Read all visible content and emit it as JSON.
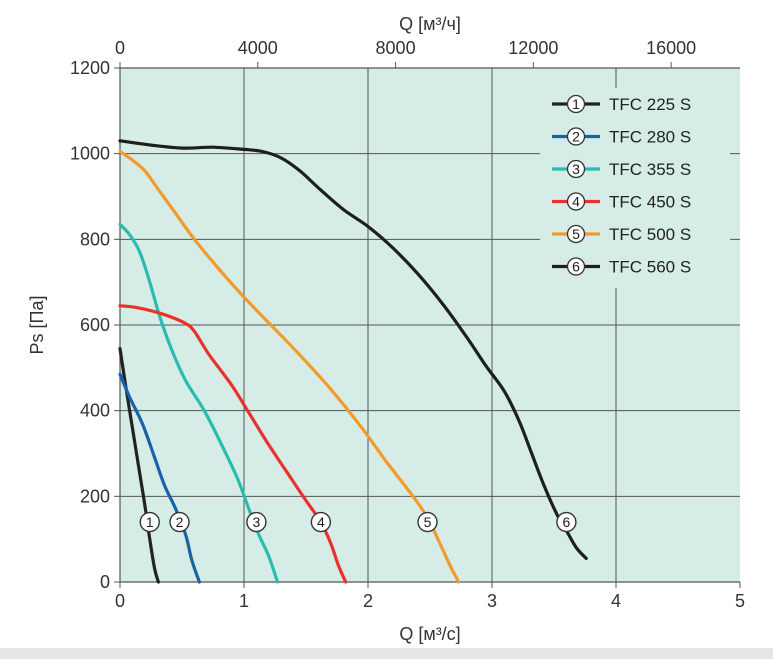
{
  "chart_data": {
    "type": "line",
    "xlabel_bottom": "Q [м³/с]",
    "xlabel_top": "Q [м³/ч]",
    "ylabel": "Ps [Па]",
    "xlim": [
      0,
      5
    ],
    "ylim": [
      0,
      1200
    ],
    "x2lim": [
      0,
      18000
    ],
    "xticks": [
      "0",
      "1",
      "2",
      "3",
      "4",
      "5"
    ],
    "x2ticks": [
      "0",
      "4000",
      "8000",
      "12000",
      "16000"
    ],
    "x2tick_values": [
      0,
      4000,
      8000,
      12000,
      16000
    ],
    "yticks": [
      "0",
      "200",
      "400",
      "600",
      "800",
      "1000",
      "1200"
    ],
    "grid": true,
    "legend_position": "top-right",
    "plot_background": "#d6ece6",
    "series": [
      {
        "id": "1",
        "name": "TFC 225 S",
        "color": "#222222",
        "points": [
          [
            0.0,
            545
          ],
          [
            0.05,
            450
          ],
          [
            0.1,
            360
          ],
          [
            0.15,
            270
          ],
          [
            0.2,
            180
          ],
          [
            0.24,
            100
          ],
          [
            0.28,
            30
          ],
          [
            0.31,
            0
          ]
        ],
        "marker": [
          0.24,
          140
        ]
      },
      {
        "id": "2",
        "name": "TFC 280 S",
        "color": "#1a62a6",
        "points": [
          [
            0.0,
            485
          ],
          [
            0.08,
            430
          ],
          [
            0.18,
            370
          ],
          [
            0.28,
            290
          ],
          [
            0.36,
            225
          ],
          [
            0.45,
            170
          ],
          [
            0.53,
            110
          ],
          [
            0.58,
            50
          ],
          [
            0.64,
            0
          ]
        ],
        "marker": [
          0.48,
          140
        ]
      },
      {
        "id": "3",
        "name": "TFC 355 S",
        "color": "#2bbcb0",
        "points": [
          [
            0.0,
            835
          ],
          [
            0.08,
            810
          ],
          [
            0.16,
            770
          ],
          [
            0.24,
            700
          ],
          [
            0.32,
            620
          ],
          [
            0.42,
            540
          ],
          [
            0.53,
            470
          ],
          [
            0.68,
            400
          ],
          [
            0.82,
            320
          ],
          [
            0.95,
            240
          ],
          [
            1.04,
            170
          ],
          [
            1.12,
            110
          ],
          [
            1.2,
            60
          ],
          [
            1.27,
            0
          ]
        ],
        "marker": [
          1.1,
          140
        ]
      },
      {
        "id": "4",
        "name": "TFC 450 S",
        "color": "#e8332c",
        "points": [
          [
            0.0,
            645
          ],
          [
            0.15,
            640
          ],
          [
            0.35,
            625
          ],
          [
            0.52,
            605
          ],
          [
            0.6,
            585
          ],
          [
            0.72,
            530
          ],
          [
            0.9,
            460
          ],
          [
            1.05,
            390
          ],
          [
            1.2,
            320
          ],
          [
            1.35,
            255
          ],
          [
            1.5,
            190
          ],
          [
            1.62,
            140
          ],
          [
            1.7,
            90
          ],
          [
            1.76,
            40
          ],
          [
            1.82,
            0
          ]
        ],
        "marker": [
          1.62,
          140
        ]
      },
      {
        "id": "5",
        "name": "TFC 500 S",
        "color": "#f39a2b",
        "points": [
          [
            0.0,
            1005
          ],
          [
            0.1,
            985
          ],
          [
            0.2,
            960
          ],
          [
            0.3,
            920
          ],
          [
            0.45,
            860
          ],
          [
            0.6,
            800
          ],
          [
            0.8,
            730
          ],
          [
            1.0,
            665
          ],
          [
            1.2,
            605
          ],
          [
            1.45,
            530
          ],
          [
            1.7,
            450
          ],
          [
            1.95,
            360
          ],
          [
            2.15,
            280
          ],
          [
            2.35,
            205
          ],
          [
            2.48,
            150
          ],
          [
            2.58,
            90
          ],
          [
            2.66,
            40
          ],
          [
            2.73,
            0
          ]
        ],
        "marker": [
          2.48,
          140
        ]
      },
      {
        "id": "6",
        "name": "TFC 560 S",
        "color": "#1e1e1e",
        "points": [
          [
            0.0,
            1030
          ],
          [
            0.25,
            1020
          ],
          [
            0.5,
            1013
          ],
          [
            0.75,
            1015
          ],
          [
            1.0,
            1010
          ],
          [
            1.15,
            1005
          ],
          [
            1.3,
            990
          ],
          [
            1.45,
            960
          ],
          [
            1.6,
            920
          ],
          [
            1.8,
            870
          ],
          [
            2.0,
            830
          ],
          [
            2.2,
            780
          ],
          [
            2.4,
            720
          ],
          [
            2.6,
            650
          ],
          [
            2.8,
            570
          ],
          [
            2.95,
            505
          ],
          [
            3.1,
            445
          ],
          [
            3.22,
            375
          ],
          [
            3.32,
            300
          ],
          [
            3.42,
            225
          ],
          [
            3.52,
            160
          ],
          [
            3.6,
            120
          ],
          [
            3.68,
            80
          ],
          [
            3.76,
            55
          ]
        ],
        "marker": [
          3.6,
          140
        ]
      }
    ]
  }
}
